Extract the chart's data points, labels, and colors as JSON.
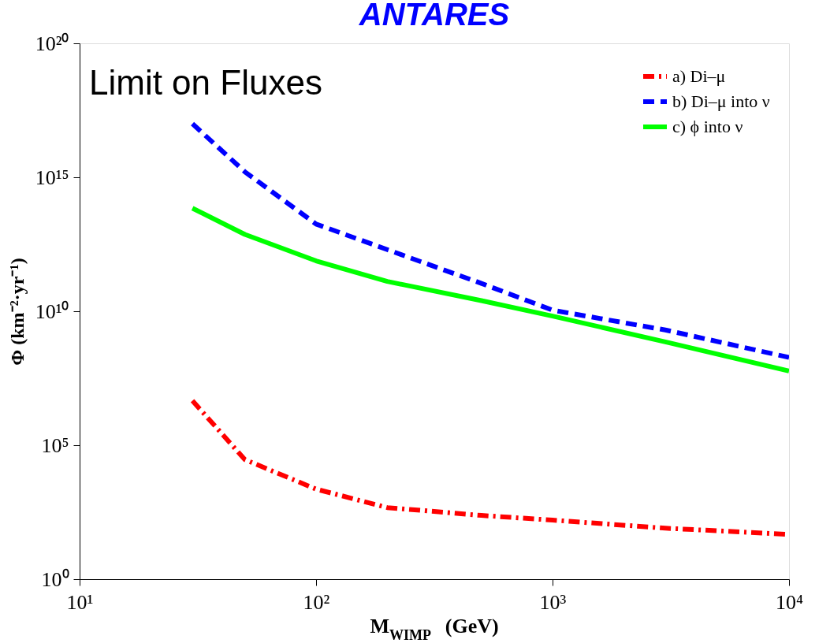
{
  "chart_data": {
    "type": "line",
    "title": "ANTARES",
    "xlabel": "M$_{WIMP}$ (GeV)",
    "ylabel": "Φ (km⁻²·yr⁻¹)",
    "annotations": [
      "Limit on Fluxes"
    ],
    "log": "xy",
    "grid": false,
    "legend": "top right",
    "marker": "none",
    "xlim": [
      10,
      10000
    ],
    "ylim": [
      1,
      1e+20
    ],
    "xticks": [
      {
        "value": 10,
        "label": "10¹"
      },
      {
        "value": 100,
        "label": "10²"
      },
      {
        "value": 1000,
        "label": "10³"
      },
      {
        "value": 10000,
        "label": "10⁴"
      }
    ],
    "yticks": [
      {
        "value": 1,
        "label": "10⁰"
      },
      {
        "value": 100000,
        "label": "10⁵"
      },
      {
        "value": 10000000000.0,
        "label": "10¹⁰"
      },
      {
        "value": 1000000000000000.0,
        "label": "10¹⁵"
      },
      {
        "value": 1e+20,
        "label": "10²⁰"
      }
    ],
    "series": [
      {
        "name": "a) Di–μ",
        "color": "#ff0000",
        "line_style": "dashdot",
        "x": [
          30,
          50,
          100,
          200,
          500,
          1000,
          3000,
          10000
        ],
        "values": [
          4600000.0,
          29000,
          2300,
          470,
          240,
          160,
          80,
          47
        ]
      },
      {
        "name": "b) Di–μ into ν",
        "color": "#0000ff",
        "line_style": "dashed",
        "x": [
          30,
          50,
          100,
          200,
          500,
          1000,
          3000,
          10000
        ],
        "values": [
          1e+17,
          1600000000000000.0,
          18000000000000.0,
          2000000000000.0,
          110000000000.0,
          11000000000.0,
          2000000000.0,
          190000000.0
        ]
      },
      {
        "name": "c) ϕ into ν",
        "color": "#00ff00",
        "line_style": "solid",
        "x": [
          30,
          50,
          100,
          200,
          500,
          1000,
          3000,
          10000
        ],
        "values": [
          70000000000000.0,
          7400000000000.0,
          760000000000.0,
          130000000000.0,
          25000000000.0,
          6600000000.0,
          720000000.0,
          59000000.0
        ]
      }
    ]
  }
}
